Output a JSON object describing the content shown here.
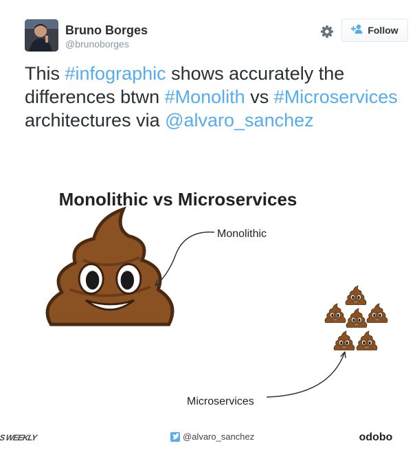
{
  "tweet": {
    "author": {
      "name": "Bruno Borges",
      "handle": "@brunoborges"
    },
    "follow_label": "Follow",
    "text": {
      "p1": "This ",
      "h1": "#infographic",
      "p2": " shows accurately the differences btwn ",
      "h2": "#Monolith",
      "p3": " vs ",
      "h3": "#Microservices",
      "p4": " architectures via ",
      "mention": "@alvaro_sanchez"
    }
  },
  "infographic": {
    "title": "Monolithic vs Microservices",
    "label_monolithic": "Monolithic",
    "label_microservices": "Microservices",
    "footer": {
      "left_logo": "GRAILS WEEKLY",
      "twitter": "@alvaro_sanchez",
      "right_logo": "odobo"
    }
  },
  "icons": [
    "gear-icon",
    "add-user-icon",
    "twitter-bird-icon"
  ],
  "colors": {
    "link": "#55acee",
    "text": "#292f33",
    "muted": "#8899a6",
    "poo": "#8a5222"
  }
}
